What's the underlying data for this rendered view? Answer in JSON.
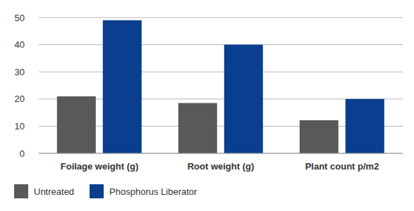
{
  "chart_data": {
    "type": "bar",
    "categories": [
      "Foilage weight (g)",
      "Root weight (g)",
      "Plant count p/m2"
    ],
    "series": [
      {
        "name": "Untreated",
        "color": "#58595b",
        "values": [
          21,
          18.5,
          12.2
        ]
      },
      {
        "name": "Phosphorus Liberator",
        "color": "#0a3f8f",
        "values": [
          49,
          40,
          20
        ]
      }
    ],
    "ylim": [
      0,
      50
    ],
    "yticks": [
      0,
      10,
      20,
      30,
      40,
      50
    ],
    "grid": true,
    "legend": "bottom left"
  }
}
